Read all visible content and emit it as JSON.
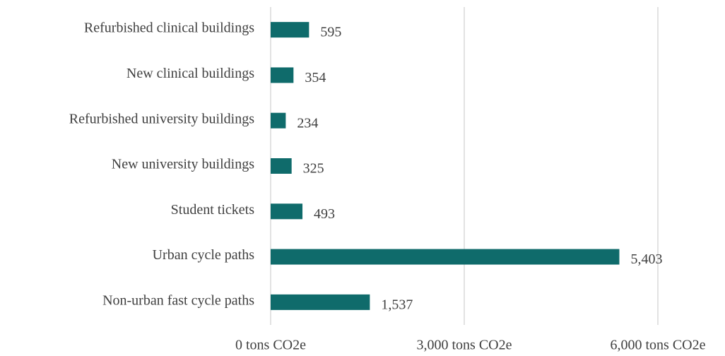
{
  "chart_data": {
    "type": "bar",
    "orientation": "horizontal",
    "categories": [
      "Refurbished clinical buildings",
      "New clinical buildings",
      "Refurbished university buildings",
      "New university buildings",
      "Student tickets",
      "Urban cycle paths",
      "Non-urban fast cycle paths"
    ],
    "values": [
      595,
      354,
      234,
      325,
      493,
      5403,
      1537
    ],
    "value_labels": [
      "595",
      "354",
      "234",
      "325",
      "493",
      "5,403",
      "1,537"
    ],
    "color": "#0f6b6b",
    "xlim": [
      0,
      6000
    ],
    "xticks": [
      {
        "value": 0,
        "label": "0 tons CO2e"
      },
      {
        "value": 3000,
        "label": "3,000 tons CO2e"
      },
      {
        "value": 6000,
        "label": "6,000 tons CO2e"
      }
    ],
    "grid": true
  }
}
